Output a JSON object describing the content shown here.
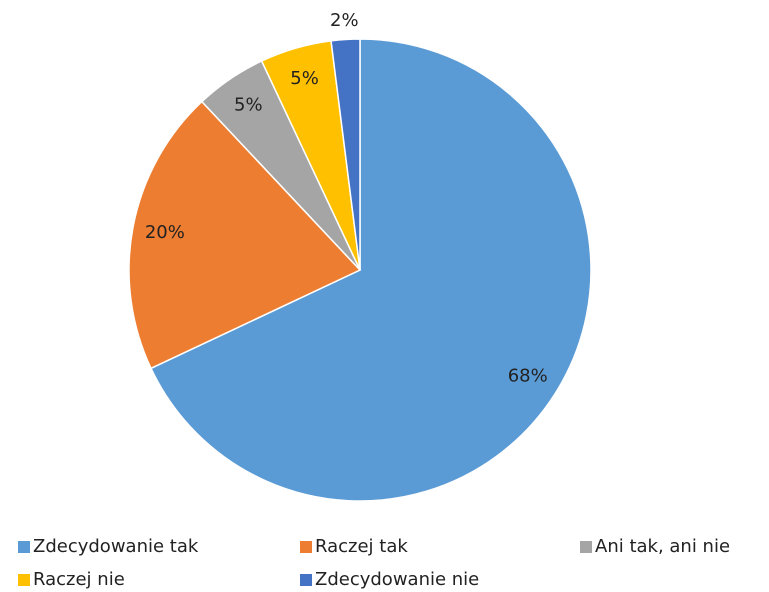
{
  "chart_data": {
    "type": "pie",
    "categories": [
      "Zdecydowanie tak",
      "Raczej tak",
      "Ani tak, ani nie",
      "Raczej nie",
      "Zdecydowanie nie"
    ],
    "values": [
      68,
      20,
      5,
      5,
      2
    ],
    "value_labels": [
      "68%",
      "20%",
      "5%",
      "5%",
      "2%"
    ],
    "colors": [
      "#5b9bd5",
      "#ed7d31",
      "#a5a5a5",
      "#ffc000",
      "#4472c4"
    ],
    "legend": "bottom"
  }
}
